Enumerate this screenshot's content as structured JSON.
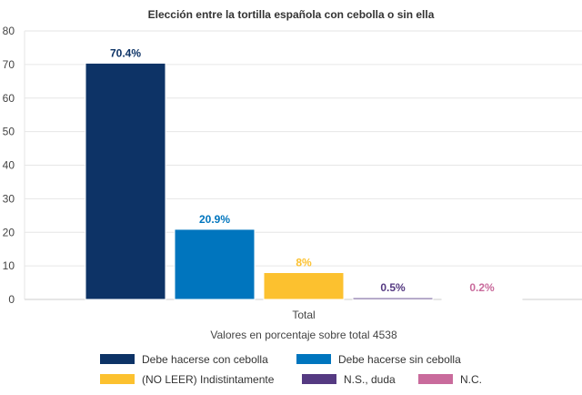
{
  "chart_data": {
    "type": "bar",
    "title": "Elección entre la tortilla española con cebolla o sin ella",
    "categories": [
      "Total"
    ],
    "xlabel": "Valores en porcentaje sobre total 4538",
    "ylabel": "",
    "ylim": [
      0,
      80
    ],
    "yticks": [
      0,
      10,
      20,
      30,
      40,
      50,
      60,
      70,
      80
    ],
    "grid": true,
    "legend_position": "bottom",
    "series": [
      {
        "name": "Debe hacerse con cebolla",
        "values": [
          70.4
        ],
        "label": "70.4%",
        "color": "#0d3366"
      },
      {
        "name": "Debe hacerse sin cebolla",
        "values": [
          20.9
        ],
        "label": "20.9%",
        "color": "#0075be"
      },
      {
        "name": "(NO LEER) Indistintamente",
        "values": [
          8
        ],
        "label": "8%",
        "color": "#fcc12f"
      },
      {
        "name": "N.S., duda",
        "values": [
          0.5
        ],
        "label": "0.5%",
        "color": "#553a82"
      },
      {
        "name": "N.C.",
        "values": [
          0.2
        ],
        "label": "0.2%",
        "color": "#c96b9c"
      }
    ]
  }
}
